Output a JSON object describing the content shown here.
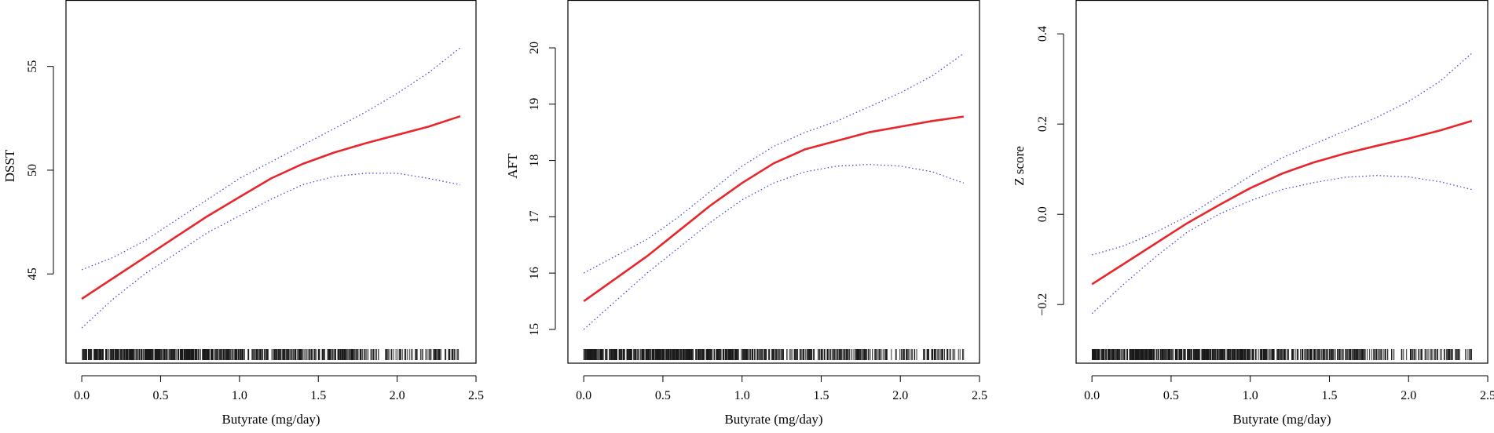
{
  "colors": {
    "fit": "#e8262b",
    "ci": "#3a3fd4",
    "rug": "#1a1a1a",
    "axis": "#000000"
  },
  "chart_data": [
    {
      "type": "line",
      "xlabel": "Butyrate (mg/day)",
      "ylabel": "DSST",
      "xlim": [
        -0.1,
        2.5
      ],
      "ylim": [
        40.7,
        58.2
      ],
      "xticks": [
        0.0,
        0.5,
        1.0,
        1.5,
        2.0,
        2.5
      ],
      "xtick_labels": [
        "0.0",
        "0.5",
        "1.0",
        "1.5",
        "2.0",
        "2.5"
      ],
      "yticks": [
        45,
        50,
        55
      ],
      "ytick_labels": [
        "45",
        "50",
        "55"
      ],
      "x": [
        0.0,
        0.2,
        0.4,
        0.6,
        0.8,
        1.0,
        1.2,
        1.4,
        1.6,
        1.8,
        2.0,
        2.2,
        2.4
      ],
      "series": [
        {
          "role": "fit",
          "values": [
            43.8,
            44.8,
            45.8,
            46.8,
            47.8,
            48.7,
            49.6,
            50.3,
            50.85,
            51.3,
            51.7,
            52.1,
            52.6
          ]
        },
        {
          "role": "upper",
          "values": [
            45.2,
            45.8,
            46.6,
            47.6,
            48.6,
            49.6,
            50.4,
            51.2,
            52.0,
            52.8,
            53.7,
            54.7,
            55.9
          ]
        },
        {
          "role": "lower",
          "values": [
            42.4,
            43.8,
            45.0,
            46.0,
            47.0,
            47.8,
            48.6,
            49.3,
            49.7,
            49.85,
            49.85,
            49.6,
            49.3
          ]
        }
      ]
    },
    {
      "type": "line",
      "xlabel": "Butyrate (mg/day)",
      "ylabel": "AFT",
      "xlim": [
        -0.1,
        2.5
      ],
      "ylim": [
        14.4,
        20.85
      ],
      "xticks": [
        0.0,
        0.5,
        1.0,
        1.5,
        2.0,
        2.5
      ],
      "xtick_labels": [
        "0.0",
        "0.5",
        "1.0",
        "1.5",
        "2.0",
        "2.5"
      ],
      "yticks": [
        15,
        16,
        17,
        18,
        19,
        20
      ],
      "ytick_labels": [
        "15",
        "16",
        "17",
        "18",
        "19",
        "20"
      ],
      "x": [
        0.0,
        0.2,
        0.4,
        0.6,
        0.8,
        1.0,
        1.2,
        1.4,
        1.6,
        1.8,
        2.0,
        2.2,
        2.4
      ],
      "series": [
        {
          "role": "fit",
          "values": [
            15.5,
            15.9,
            16.3,
            16.75,
            17.2,
            17.6,
            17.95,
            18.2,
            18.35,
            18.5,
            18.6,
            18.7,
            18.78
          ]
        },
        {
          "role": "upper",
          "values": [
            16.0,
            16.3,
            16.6,
            17.0,
            17.45,
            17.9,
            18.25,
            18.5,
            18.7,
            18.95,
            19.2,
            19.5,
            19.9
          ]
        },
        {
          "role": "lower",
          "values": [
            15.0,
            15.5,
            16.0,
            16.45,
            16.9,
            17.3,
            17.6,
            17.8,
            17.9,
            17.93,
            17.9,
            17.8,
            17.6
          ]
        }
      ]
    },
    {
      "type": "line",
      "xlabel": "Butyrate (mg/day)",
      "ylabel": "Z score",
      "xlim": [
        -0.1,
        2.5
      ],
      "ylim": [
        -0.33,
        0.475
      ],
      "xticks": [
        0.0,
        0.5,
        1.0,
        1.5,
        2.0,
        2.5
      ],
      "xtick_labels": [
        "0.0",
        "0.5",
        "1.0",
        "1.5",
        "2.0",
        "2.5"
      ],
      "yticks": [
        -0.2,
        0.0,
        0.2,
        0.4
      ],
      "ytick_labels": [
        "−0.2",
        "0.0",
        "0.2",
        "0.4"
      ],
      "x": [
        0.0,
        0.2,
        0.4,
        0.6,
        0.8,
        1.0,
        1.2,
        1.4,
        1.6,
        1.8,
        2.0,
        2.2,
        2.4
      ],
      "series": [
        {
          "role": "fit",
          "values": [
            -0.155,
            -0.11,
            -0.065,
            -0.02,
            0.02,
            0.058,
            0.09,
            0.115,
            0.135,
            0.152,
            0.168,
            0.186,
            0.207
          ]
        },
        {
          "role": "upper",
          "values": [
            -0.09,
            -0.07,
            -0.04,
            -0.005,
            0.04,
            0.085,
            0.125,
            0.155,
            0.185,
            0.215,
            0.25,
            0.295,
            0.357
          ]
        },
        {
          "role": "lower",
          "values": [
            -0.22,
            -0.155,
            -0.095,
            -0.04,
            0.0,
            0.03,
            0.055,
            0.07,
            0.082,
            0.086,
            0.083,
            0.072,
            0.055
          ]
        }
      ]
    }
  ]
}
